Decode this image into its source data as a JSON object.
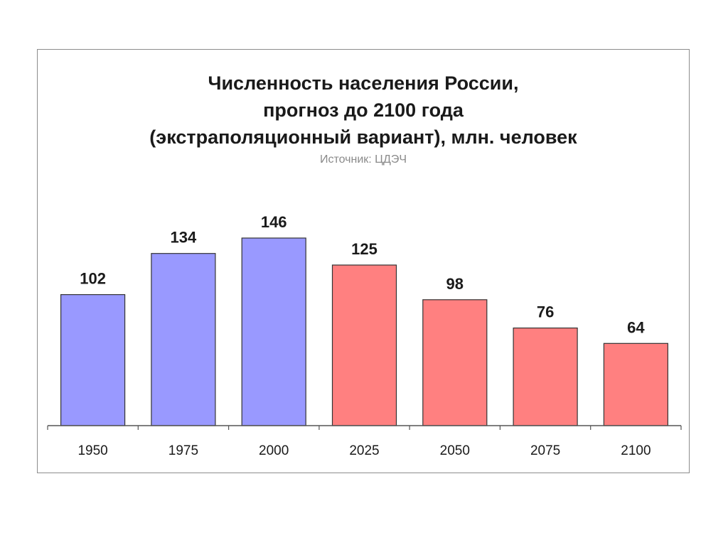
{
  "chart_data": {
    "type": "bar",
    "title": [
      "Численность населения России,",
      "прогноз до 2100 года",
      "(экстраполяционный вариант), млн. человек"
    ],
    "subtitle": "Источник: ЦДЭЧ",
    "categories": [
      "1950",
      "1975",
      "2000",
      "2025",
      "2050",
      "2075",
      "2100"
    ],
    "values": [
      102,
      134,
      146,
      125,
      98,
      76,
      64
    ],
    "data_labels": [
      "102",
      "134",
      "146",
      "125",
      "98",
      "76",
      "64"
    ],
    "bar_colors": [
      "#9999ff",
      "#9999ff",
      "#9999ff",
      "#ff8080",
      "#ff8080",
      "#ff8080",
      "#ff8080"
    ],
    "ylim": [
      0,
      146
    ],
    "grid": false,
    "legend": "none"
  }
}
